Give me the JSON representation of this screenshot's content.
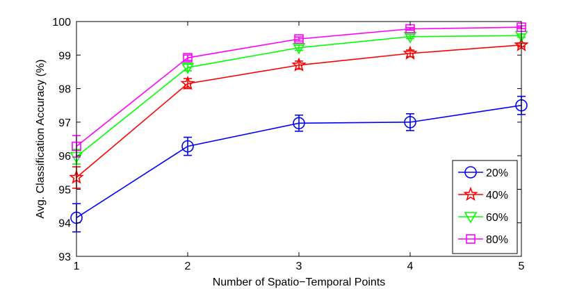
{
  "chart_data": {
    "type": "line",
    "title": "",
    "xlabel": "Number of Spatio−Temporal Points",
    "ylabel": "Avg. Classification Accuracy (%)",
    "xlim": [
      1,
      5
    ],
    "ylim": [
      93,
      100
    ],
    "x": [
      1,
      2,
      3,
      4,
      5
    ],
    "xticks": [
      "1",
      "2",
      "3",
      "4",
      "5"
    ],
    "yticks": [
      "93",
      "94",
      "95",
      "96",
      "97",
      "98",
      "99",
      "100"
    ],
    "grid": false,
    "legend_position": "lower-right",
    "series": [
      {
        "name": "20%",
        "color": "#0000ff",
        "marker": "circle",
        "values": [
          94.15,
          96.28,
          96.97,
          97.0,
          97.5
        ],
        "errors": [
          0.42,
          0.27,
          0.24,
          0.25,
          0.27
        ]
      },
      {
        "name": "40%",
        "color": "#ff0000",
        "marker": "star",
        "values": [
          95.35,
          98.15,
          98.7,
          99.05,
          99.3
        ],
        "errors": [
          0.32,
          0.15,
          0.12,
          0.1,
          0.05
        ]
      },
      {
        "name": "60%",
        "color": "#00ff00",
        "marker": "triangle-down",
        "values": [
          95.97,
          98.63,
          99.22,
          99.55,
          99.58
        ],
        "errors": [
          0.22,
          0.1,
          0.08,
          0.06,
          0.05
        ]
      },
      {
        "name": "80%",
        "color": "#ff00ff",
        "marker": "square",
        "values": [
          96.28,
          98.92,
          99.48,
          99.78,
          99.83
        ],
        "errors": [
          0.32,
          0.08,
          0.06,
          0.04,
          0.04
        ]
      }
    ]
  }
}
